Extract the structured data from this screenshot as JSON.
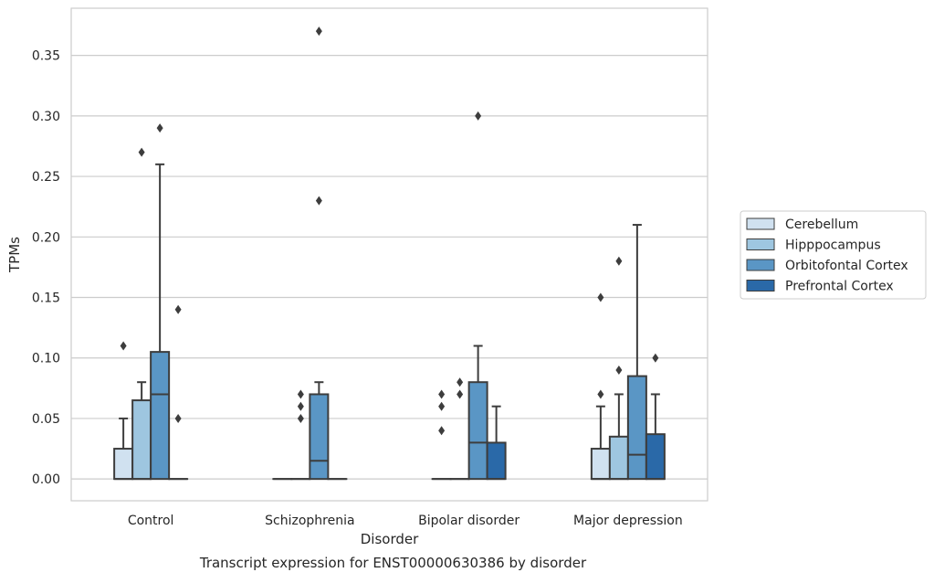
{
  "chart_data": {
    "type": "box",
    "title": "",
    "caption": "Transcript expression for ENST00000630386 by disorder",
    "xlabel": "Disorder",
    "ylabel": "TPMs",
    "ylim": [
      -0.018,
      0.389
    ],
    "yticks": [
      0.0,
      0.05,
      0.1,
      0.15,
      0.2,
      0.25,
      0.3,
      0.35
    ],
    "ytick_labels": [
      "0.00",
      "0.05",
      "0.10",
      "0.15",
      "0.20",
      "0.25",
      "0.30",
      "0.35"
    ],
    "grid": "horizontal",
    "legend_position": "right",
    "categories": [
      "Control",
      "Schizophrenia",
      "Bipolar disorder",
      "Major depression"
    ],
    "series": [
      {
        "name": "Cerebellum",
        "color": "#d0e1f0",
        "boxes": [
          {
            "q1": 0.0,
            "median": 0.0,
            "q3": 0.025,
            "whisker_low": 0.0,
            "whisker_high": 0.05,
            "outliers": [
              0.11
            ]
          },
          {
            "q1": 0.0,
            "median": 0.0,
            "q3": 0.0,
            "whisker_low": 0.0,
            "whisker_high": 0.0,
            "outliers": []
          },
          {
            "q1": 0.0,
            "median": 0.0,
            "q3": 0.0,
            "whisker_low": 0.0,
            "whisker_high": 0.0,
            "outliers": [
              0.04,
              0.06,
              0.07
            ]
          },
          {
            "q1": 0.0,
            "median": 0.0,
            "q3": 0.025,
            "whisker_low": 0.0,
            "whisker_high": 0.06,
            "outliers": [
              0.07,
              0.15
            ]
          }
        ]
      },
      {
        "name": "Hipppocampus",
        "color": "#9ec6e0",
        "boxes": [
          {
            "q1": 0.0,
            "median": 0.0,
            "q3": 0.065,
            "whisker_low": 0.0,
            "whisker_high": 0.08,
            "outliers": [
              0.27
            ]
          },
          {
            "q1": 0.0,
            "median": 0.0,
            "q3": 0.0,
            "whisker_low": 0.0,
            "whisker_high": 0.0,
            "outliers": [
              0.05,
              0.06,
              0.07
            ]
          },
          {
            "q1": 0.0,
            "median": 0.0,
            "q3": 0.0,
            "whisker_low": 0.0,
            "whisker_high": 0.0,
            "outliers": [
              0.07,
              0.08
            ]
          },
          {
            "q1": 0.0,
            "median": 0.0,
            "q3": 0.035,
            "whisker_low": 0.0,
            "whisker_high": 0.07,
            "outliers": [
              0.09,
              0.18
            ]
          }
        ]
      },
      {
        "name": "Orbitofontal Cortex",
        "color": "#5a96c5",
        "boxes": [
          {
            "q1": 0.0,
            "median": 0.07,
            "q3": 0.105,
            "whisker_low": 0.0,
            "whisker_high": 0.26,
            "outliers": [
              0.29
            ]
          },
          {
            "q1": 0.0,
            "median": 0.015,
            "q3": 0.07,
            "whisker_low": 0.0,
            "whisker_high": 0.08,
            "outliers": [
              0.23,
              0.37
            ]
          },
          {
            "q1": 0.0,
            "median": 0.03,
            "q3": 0.08,
            "whisker_low": 0.0,
            "whisker_high": 0.11,
            "outliers": [
              0.3
            ]
          },
          {
            "q1": 0.0,
            "median": 0.02,
            "q3": 0.085,
            "whisker_low": 0.0,
            "whisker_high": 0.21,
            "outliers": []
          }
        ]
      },
      {
        "name": "Prefrontal Cortex",
        "color": "#2a69a8",
        "boxes": [
          {
            "q1": 0.0,
            "median": 0.0,
            "q3": 0.0,
            "whisker_low": 0.0,
            "whisker_high": 0.0,
            "outliers": [
              0.05,
              0.14
            ]
          },
          {
            "q1": 0.0,
            "median": 0.0,
            "q3": 0.0,
            "whisker_low": 0.0,
            "whisker_high": 0.0,
            "outliers": []
          },
          {
            "q1": 0.0,
            "median": 0.0,
            "q3": 0.03,
            "whisker_low": 0.0,
            "whisker_high": 0.06,
            "outliers": []
          },
          {
            "q1": 0.0,
            "median": 0.0,
            "q3": 0.037,
            "whisker_low": 0.0,
            "whisker_high": 0.07,
            "outliers": [
              0.1
            ]
          }
        ]
      }
    ]
  }
}
